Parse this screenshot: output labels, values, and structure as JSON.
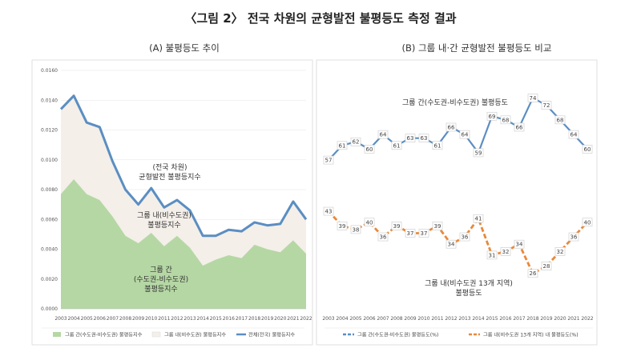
{
  "title": "〈그림 2〉 전국 차원의 균형발전 불평등도 측정 결과",
  "chart_data": [
    {
      "type": "area",
      "panel_title": "(A) 불평등도 추이",
      "categories": [
        "2003",
        "2004",
        "2005",
        "2006",
        "2007",
        "2008",
        "2009",
        "2010",
        "2011",
        "2012",
        "2013",
        "2014",
        "2015",
        "2016",
        "2017",
        "2018",
        "2019",
        "2020",
        "2021",
        "2022"
      ],
      "ylim": [
        0,
        0.016
      ],
      "yticks": [
        "0.0000",
        "0.0020",
        "0.0040",
        "0.0060",
        "0.0080",
        "0.0100",
        "0.0120",
        "0.0140",
        "0.0160"
      ],
      "series": [
        {
          "name": "그룹 간(수도권-비수도권) 불평등지수",
          "color": "#b5d7a4",
          "values": [
            0.0077,
            0.0087,
            0.0077,
            0.0073,
            0.0062,
            0.0049,
            0.0044,
            0.0051,
            0.0042,
            0.0049,
            0.0041,
            0.0029,
            0.0033,
            0.0036,
            0.0034,
            0.0043,
            0.004,
            0.0038,
            0.0046,
            0.0037
          ]
        },
        {
          "name": "그룹 내(비수도권) 불평등지수",
          "color": "#f4efe9",
          "values": [
            0.0057,
            0.0056,
            0.0048,
            0.0049,
            0.0037,
            0.0031,
            0.0026,
            0.003,
            0.0026,
            0.0024,
            0.0025,
            0.002,
            0.0016,
            0.0017,
            0.0018,
            0.0015,
            0.0016,
            0.0019,
            0.0026,
            0.0023
          ]
        },
        {
          "name": "전체(전국) 불평등지수",
          "color": "#5b8ec2",
          "values": [
            0.0134,
            0.0143,
            0.0125,
            0.0122,
            0.0099,
            0.008,
            0.007,
            0.0081,
            0.0068,
            0.0073,
            0.0066,
            0.0049,
            0.0049,
            0.0053,
            0.0052,
            0.0058,
            0.0056,
            0.0057,
            0.0072,
            0.006
          ]
        }
      ],
      "annotations": {
        "total": [
          "(전국 차원)",
          "균형발전 불평등지수"
        ],
        "within": [
          "그룹 내(비수도권)",
          "불평등지수"
        ],
        "between": [
          "그룹 간",
          "(수도권-비수도권)",
          "불평등지수"
        ]
      }
    },
    {
      "type": "line",
      "panel_title": "(B) 그룹 내·간 균형발전 불평등도 비교",
      "categories": [
        "2003",
        "2004",
        "2005",
        "2006",
        "2007",
        "2008",
        "2009",
        "2010",
        "2011",
        "2012",
        "2013",
        "2014",
        "2015",
        "2016",
        "2017",
        "2018",
        "2019",
        "2020",
        "2021",
        "2022"
      ],
      "ylim": [
        15,
        80
      ],
      "series": [
        {
          "name": "그룹 간(수도권-비수도권) 불평등도(%)",
          "color": "#5b8ec2",
          "values": [
            57,
            61,
            62,
            60,
            64,
            61,
            63,
            63,
            61,
            66,
            64,
            59,
            69,
            68,
            66,
            74,
            72,
            68,
            64,
            60
          ]
        },
        {
          "name": "그룹 내(비수도권 13개 지역) 내 불평등도(%)",
          "color": "#e8893a",
          "values": [
            43,
            39,
            38,
            40,
            36,
            39,
            37,
            37,
            39,
            34,
            36,
            41,
            31,
            32,
            34,
            26,
            28,
            32,
            36,
            40
          ]
        }
      ],
      "annotations": {
        "between": [
          "그룹 간(수도권-비수도권) 불평등도"
        ],
        "within": [
          "그룹 내(비수도권 13개 지역)",
          "불평등도"
        ]
      }
    }
  ]
}
